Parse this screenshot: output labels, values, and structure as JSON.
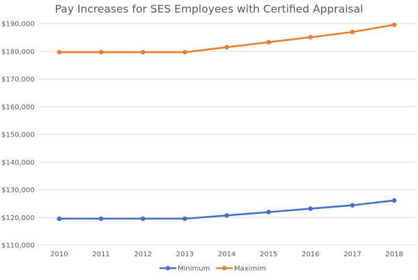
{
  "chart_data": {
    "type": "line",
    "title": "Pay Increases for SES Employees with Certified Appraisal",
    "xlabel": "",
    "ylabel": "",
    "categories": [
      "2010",
      "2011",
      "2012",
      "2013",
      "2014",
      "2015",
      "2016",
      "2017",
      "2018"
    ],
    "ylim": [
      110000,
      190000
    ],
    "yticks": [
      110000,
      120000,
      130000,
      140000,
      150000,
      160000,
      170000,
      180000,
      190000
    ],
    "ytick_labels": [
      "$110,000",
      "$120,000",
      "$130,000",
      "$140,000",
      "$150,000",
      "$160,000",
      "$170,000",
      "$180,000",
      "$190,000"
    ],
    "grid": true,
    "legend_position": "bottom",
    "series": [
      {
        "name": "Minimum",
        "color": "#4472c4",
        "values": [
          119554,
          119554,
          119554,
          119554,
          120749,
          121956,
          123175,
          124406,
          126148
        ]
      },
      {
        "name": "Maximim",
        "color": "#ed7d31",
        "values": [
          179700,
          179700,
          179700,
          179700,
          181500,
          183300,
          185100,
          187000,
          189600
        ]
      }
    ]
  }
}
